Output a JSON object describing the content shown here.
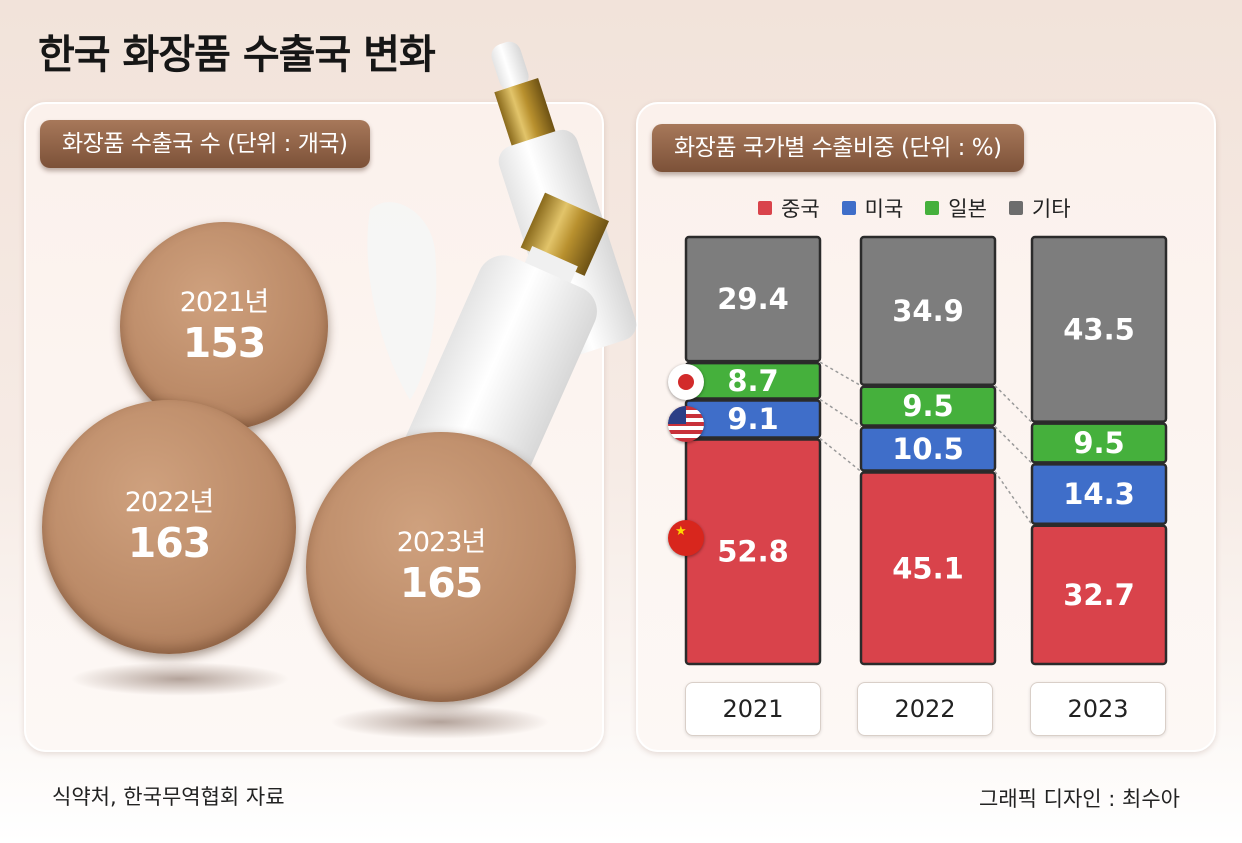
{
  "title": "한국 화장품 수출국 변화",
  "left_panel": {
    "header": "화장품 수출국 수 (단위 : 개국)",
    "circles": [
      {
        "year": "2021년",
        "value": "153"
      },
      {
        "year": "2022년",
        "value": "163"
      },
      {
        "year": "2023년",
        "value": "165"
      }
    ]
  },
  "right_panel": {
    "header": "화장품 국가별 수출비중 (단위 : %)"
  },
  "chart_data": {
    "type": "bar",
    "stacked": true,
    "title": "화장품 국가별 수출비중 (단위 : %)",
    "categories": [
      "2021",
      "2022",
      "2023"
    ],
    "series": [
      {
        "name": "중국",
        "color": "#d9434b",
        "values": [
          52.8,
          45.1,
          32.7
        ]
      },
      {
        "name": "미국",
        "color": "#3f6ec9",
        "values": [
          9.1,
          10.5,
          14.3
        ]
      },
      {
        "name": "일본",
        "color": "#45b03c",
        "values": [
          8.7,
          9.5,
          9.5
        ]
      },
      {
        "name": "기타",
        "color": "#7d7d7d",
        "values": [
          29.4,
          34.9,
          43.5
        ]
      }
    ],
    "labels": [
      [
        "52.8",
        "9.1",
        "8.7",
        "29.4"
      ],
      [
        "45.1",
        "10.5",
        "9.5",
        "34.9"
      ],
      [
        "32.7",
        "14.3",
        "9.5",
        "43.5"
      ]
    ],
    "legend_position": "top"
  },
  "legend": [
    {
      "name": "중국",
      "color": "#d9434b"
    },
    {
      "name": "미국",
      "color": "#3f6ec9"
    },
    {
      "name": "일본",
      "color": "#45b03c"
    },
    {
      "name": "기타",
      "color": "#6d6d6d"
    }
  ],
  "flags": [
    "japan-flag-icon",
    "usa-flag-icon",
    "china-flag-icon"
  ],
  "footer": {
    "source": "식약처, 한국무역협회 자료",
    "credit": "그래픽 디자인 : 최수아"
  }
}
